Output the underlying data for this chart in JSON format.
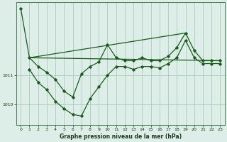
{
  "background_color": "#ddeee8",
  "grid_color": "#aaccbb",
  "line_color": "#1a5c1a",
  "title": "Graphe pression niveau de la mer (hPa)",
  "xlim": [
    -0.5,
    23.5
  ],
  "ylim": [
    1009.3,
    1013.5
  ],
  "yticks": [
    1010,
    1011
  ],
  "xticks": [
    0,
    1,
    2,
    3,
    4,
    5,
    6,
    7,
    8,
    9,
    10,
    11,
    12,
    13,
    14,
    15,
    16,
    17,
    18,
    19,
    20,
    21,
    22,
    23
  ],
  "series1_x": [
    0,
    1,
    2,
    3,
    4,
    5,
    6,
    7,
    8,
    9,
    10,
    11,
    12,
    13,
    14,
    15,
    16,
    17,
    18,
    19,
    20,
    21,
    22,
    23
  ],
  "series1_y": [
    1013.3,
    1011.6,
    1011.3,
    1011.1,
    1010.85,
    1010.45,
    1010.25,
    1011.05,
    1011.3,
    1011.45,
    1012.05,
    1011.6,
    1011.5,
    1011.5,
    1011.6,
    1011.5,
    1011.5,
    1011.65,
    1011.95,
    1012.45,
    1011.85,
    1011.5,
    1011.5,
    1011.5
  ],
  "series2_x": [
    1,
    2,
    3,
    4,
    5,
    6,
    7,
    8,
    9,
    10,
    11,
    12,
    13,
    14,
    15,
    16,
    17,
    18,
    19,
    20,
    21,
    22,
    23
  ],
  "series2_y": [
    1011.2,
    1010.75,
    1010.5,
    1010.1,
    1009.85,
    1009.65,
    1009.6,
    1010.2,
    1010.6,
    1011.0,
    1011.3,
    1011.3,
    1011.2,
    1011.3,
    1011.3,
    1011.25,
    1011.4,
    1011.6,
    1012.2,
    1011.6,
    1011.4,
    1011.4,
    1011.4
  ],
  "series3_x": [
    1,
    23
  ],
  "series3_y": [
    1011.6,
    1011.5
  ],
  "series4_x": [
    1,
    19
  ],
  "series4_y": [
    1011.6,
    1012.45
  ]
}
